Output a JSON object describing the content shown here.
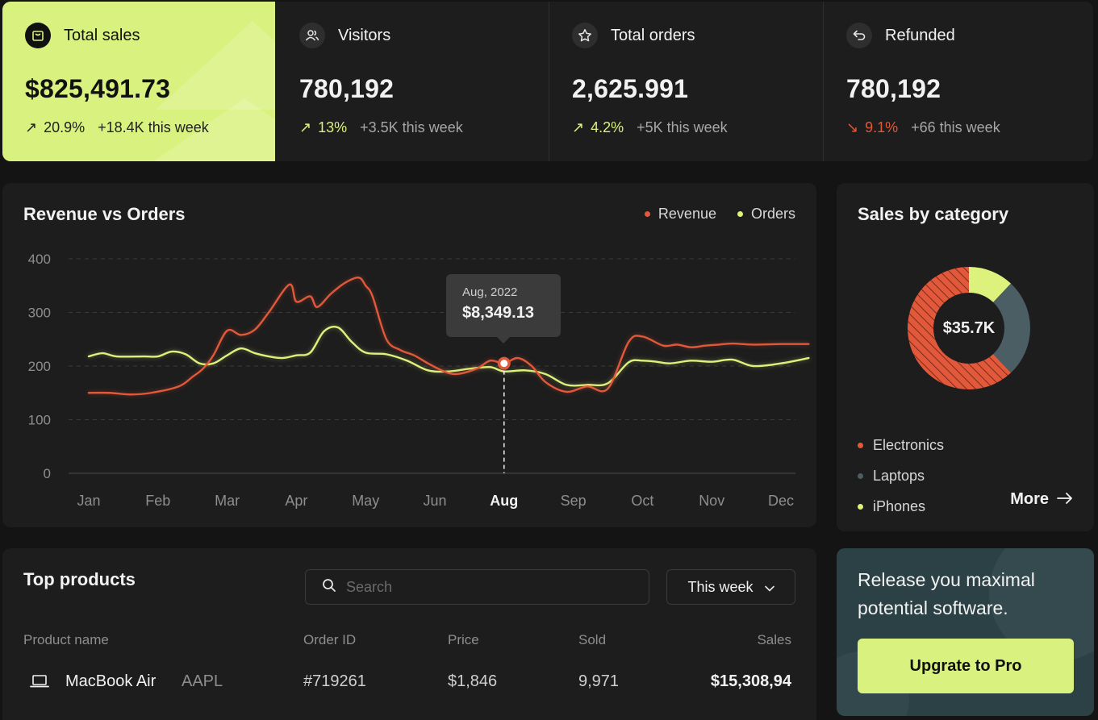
{
  "kpis": [
    {
      "label": "Total sales",
      "icon": "bag-icon",
      "value": "$825,491.73",
      "pct": "20.9%",
      "delta": "+18.4K this week",
      "direction": "up"
    },
    {
      "label": "Visitors",
      "icon": "users-icon",
      "value": "780,192",
      "pct": "13%",
      "delta": "+3.5K this week",
      "direction": "up"
    },
    {
      "label": "Total orders",
      "icon": "star-icon",
      "value": "2,625.991",
      "pct": "4.2%",
      "delta": "+5K this week",
      "direction": "up"
    },
    {
      "label": "Refunded",
      "icon": "return-icon",
      "value": "780,192",
      "pct": "9.1%",
      "delta": "+66 this week",
      "direction": "down"
    }
  ],
  "chart": {
    "title": "Revenue vs Orders",
    "tooltip": {
      "date": "Aug, 2022",
      "value": "$8,349.13"
    }
  },
  "chart_data": {
    "type": "line",
    "title": "Revenue vs Orders",
    "categories": [
      "Jan",
      "Feb",
      "Mar",
      "Apr",
      "May",
      "Jun",
      "Aug",
      "Sep",
      "Oct",
      "Nov",
      "Dec"
    ],
    "active_category": "Aug",
    "ylim": [
      0,
      400
    ],
    "yticks": [
      0,
      100,
      200,
      300,
      400
    ],
    "grid": true,
    "legend": "top-right",
    "series": [
      {
        "name": "Revenue",
        "color": "#e1583a",
        "x": [
          0,
          0.3,
          0.6,
          0.9,
          1.3,
          1.5,
          1.65,
          1.8,
          2.0,
          2.2,
          2.4,
          2.6,
          2.9,
          3.0,
          3.2,
          3.3,
          3.5,
          3.7,
          3.9,
          4.0,
          4.1,
          4.3,
          4.5,
          4.7,
          4.9,
          5.1,
          5.3,
          5.6,
          5.8,
          6.0,
          6.2,
          6.4,
          6.6,
          6.9,
          7.2,
          7.5,
          7.8,
          8.0,
          8.3,
          8.5,
          8.7,
          8.9,
          9.1,
          9.3,
          9.6,
          10.0,
          10.4
        ],
        "y": [
          150,
          150,
          147,
          150,
          162,
          180,
          195,
          220,
          266,
          258,
          268,
          300,
          352,
          320,
          330,
          310,
          335,
          355,
          365,
          350,
          330,
          250,
          230,
          220,
          205,
          192,
          185,
          195,
          210,
          205,
          215,
          200,
          170,
          152,
          162,
          158,
          245,
          255,
          238,
          240,
          235,
          238,
          240,
          242,
          240,
          241,
          241
        ]
      },
      {
        "name": "Orders",
        "color": "#dcf27c",
        "x": [
          0,
          0.2,
          0.4,
          0.8,
          1.0,
          1.2,
          1.4,
          1.6,
          1.8,
          2.0,
          2.2,
          2.4,
          2.6,
          2.8,
          3.0,
          3.2,
          3.4,
          3.6,
          3.8,
          4.0,
          4.3,
          4.6,
          4.9,
          5.2,
          5.5,
          5.8,
          6.0,
          6.3,
          6.6,
          6.9,
          7.2,
          7.5,
          7.8,
          8.0,
          8.2,
          8.4,
          8.7,
          9.0,
          9.3,
          9.6,
          10.0,
          10.4
        ],
        "y": [
          218,
          224,
          218,
          218,
          218,
          227,
          222,
          205,
          205,
          220,
          233,
          224,
          218,
          215,
          220,
          225,
          265,
          272,
          245,
          225,
          222,
          210,
          192,
          190,
          195,
          198,
          190,
          192,
          185,
          165,
          165,
          168,
          207,
          210,
          208,
          205,
          210,
          208,
          212,
          200,
          205,
          215
        ]
      }
    ]
  },
  "categories_card": {
    "title": "Sales by category",
    "total": "$35.7K",
    "more_label": "More",
    "items": [
      {
        "label": "Electronics",
        "color": "#e1583a",
        "share": 0.62
      },
      {
        "label": "Laptops",
        "color": "#4a5e64",
        "share": 0.26
      },
      {
        "label": "iPhones",
        "color": "#dcf27c",
        "share": 0.12
      }
    ]
  },
  "products": {
    "title": "Top products",
    "search_placeholder": "Search",
    "period": "This week",
    "columns": [
      "Product name",
      "Order ID",
      "Price",
      "Sold",
      "Sales"
    ],
    "rows": [
      {
        "name": "MacBook Air",
        "ticker": "AAPL",
        "order_id": "#719261",
        "price": "$1,846",
        "sold": "9,971",
        "sales": "$15,308,94"
      }
    ]
  },
  "promo": {
    "text": "Release you maximal potential software.",
    "button": "Upgrate to Pro"
  }
}
